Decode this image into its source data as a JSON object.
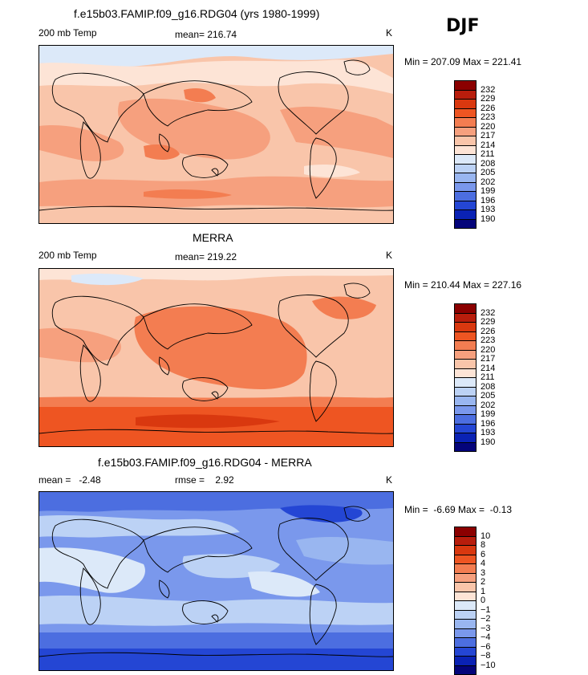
{
  "season": "DJF",
  "panels": [
    {
      "id": "model",
      "title": "f.e15b03.FAMIP.f09_g16.RDG04 (yrs 1980-1999)",
      "left_label": "200 mb Temp",
      "center_label": "mean= 216.74",
      "right_label": "K",
      "minmax": "Min = 207.09 Max = 221.41",
      "colorbar_key": "temp"
    },
    {
      "id": "obs",
      "title": "MERRA",
      "left_label": "200 mb Temp",
      "center_label": "mean= 219.22",
      "right_label": "K",
      "minmax": "Min = 210.44 Max = 227.16",
      "colorbar_key": "temp"
    },
    {
      "id": "diff",
      "title": "f.e15b03.FAMIP.f09_g16.RDG04 - MERRA",
      "left_label": "mean =   -2.48",
      "center_label": "rmse =    2.92",
      "right_label": "K",
      "minmax": "Min =  -6.69 Max =  -0.13",
      "colorbar_key": "diff"
    }
  ],
  "colorbars": {
    "temp": {
      "labels": [
        "232",
        "229",
        "226",
        "223",
        "220",
        "217",
        "214",
        "211",
        "208",
        "205",
        "202",
        "199",
        "196",
        "193",
        "190"
      ],
      "colors": [
        "#8b0000",
        "#b81d0c",
        "#d9380f",
        "#ee5522",
        "#f37d51",
        "#f6a07e",
        "#f9c5aa",
        "#fde4d6",
        "#dce9f9",
        "#bcd2f5",
        "#99b6f0",
        "#7a98ec",
        "#4c6ee0",
        "#2446d4",
        "#0a22b4",
        "#04047a"
      ]
    },
    "diff": {
      "labels": [
        "10",
        "8",
        "6",
        "4",
        "3",
        "2",
        "1",
        "0",
        "−1",
        "−2",
        "−3",
        "−4",
        "−6",
        "−8",
        "−10"
      ],
      "colors": [
        "#8b0000",
        "#b81d0c",
        "#d9380f",
        "#ee5522",
        "#f37d51",
        "#f6a07e",
        "#f9c5aa",
        "#fde4d6",
        "#dce9f9",
        "#bcd2f5",
        "#99b6f0",
        "#7a98ec",
        "#4c6ee0",
        "#2446d4",
        "#0a22b4",
        "#04047a"
      ]
    }
  },
  "chart_data": [
    {
      "type": "heatmap",
      "title": "f.e15b03.FAMIP.f09_g16.RDG04 (yrs 1980-1999)",
      "variable": "200 mb Temp",
      "units": "K",
      "mean": 216.74,
      "min": 207.09,
      "max": 221.41,
      "contour_levels": [
        190,
        193,
        196,
        199,
        202,
        205,
        208,
        211,
        214,
        217,
        220,
        223,
        226,
        229,
        232
      ]
    },
    {
      "type": "heatmap",
      "title": "MERRA",
      "variable": "200 mb Temp",
      "units": "K",
      "mean": 219.22,
      "min": 210.44,
      "max": 227.16,
      "contour_levels": [
        190,
        193,
        196,
        199,
        202,
        205,
        208,
        211,
        214,
        217,
        220,
        223,
        226,
        229,
        232
      ]
    },
    {
      "type": "heatmap",
      "title": "f.e15b03.FAMIP.f09_g16.RDG04 - MERRA",
      "units": "K",
      "mean": -2.48,
      "rmse": 2.92,
      "min": -6.69,
      "max": -0.13,
      "contour_levels": [
        -10,
        -8,
        -6,
        -4,
        -3,
        -2,
        -1,
        0,
        1,
        2,
        3,
        4,
        6,
        8,
        10
      ]
    }
  ]
}
